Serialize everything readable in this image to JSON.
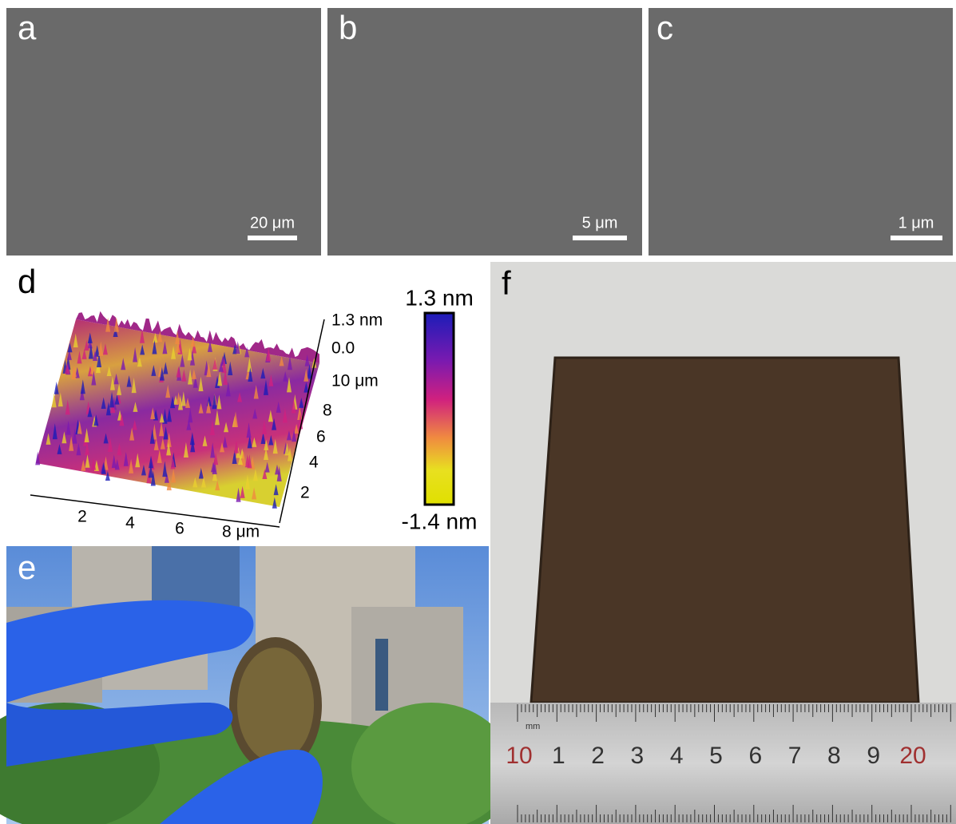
{
  "panels": [
    {
      "label": "a",
      "scale_bar": "20 μm"
    },
    {
      "label": "b",
      "scale_bar": "5 μm"
    },
    {
      "label": "c",
      "scale_bar": "1 μm"
    }
  ],
  "afm": {
    "label": "d",
    "z_ticks": [
      "1.3 nm",
      "0.0"
    ],
    "y_ticks": [
      "10 μm",
      "8",
      "6",
      "4",
      "2"
    ],
    "x_ticks": [
      "2",
      "4",
      "6",
      "8 μm"
    ],
    "colorbar": {
      "max": "1.3 nm",
      "min": "-1.4 nm"
    }
  },
  "photo_e": {
    "label": "e"
  },
  "photo_f": {
    "label": "f",
    "ruler_unit": "mm",
    "ruler_labels": [
      "10",
      "1",
      "2",
      "3",
      "4",
      "5",
      "6",
      "7",
      "8",
      "9",
      "20"
    ]
  }
}
